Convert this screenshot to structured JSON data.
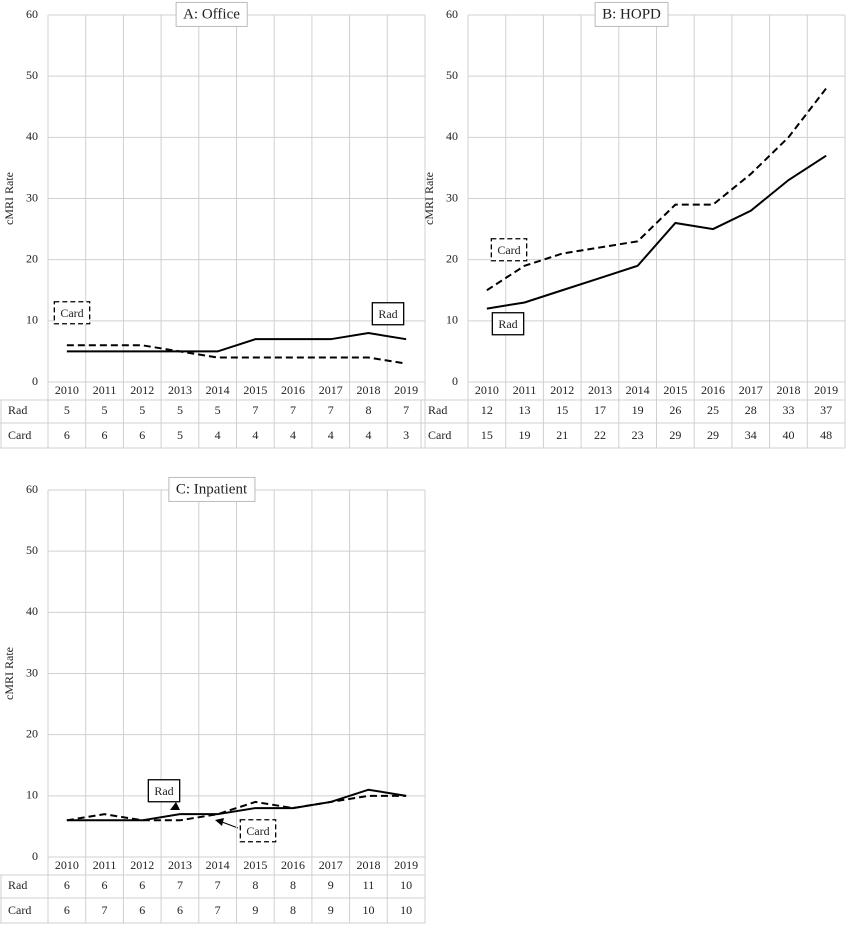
{
  "chart_data": [
    {
      "type": "line",
      "title": "A: Office",
      "y_label": "cMRI Rate",
      "categories": [
        "2010",
        "2011",
        "2012",
        "2013",
        "2014",
        "2015",
        "2016",
        "2017",
        "2018",
        "2019"
      ],
      "ylim": [
        0,
        60
      ],
      "yticks": [
        0,
        10,
        20,
        30,
        40,
        50,
        60
      ],
      "grid": true,
      "series": [
        {
          "name": "Rad",
          "color": "#000000",
          "line_style": "solid",
          "values": [
            5,
            5,
            5,
            5,
            5,
            7,
            7,
            7,
            8,
            7
          ]
        },
        {
          "name": "Card",
          "color": "#000000",
          "line_style": "dashed",
          "values": [
            6,
            6,
            6,
            5,
            4,
            4,
            4,
            4,
            4,
            3
          ]
        }
      ]
    },
    {
      "type": "line",
      "title": "B: HOPD",
      "y_label": "cMRI Rate",
      "categories": [
        "2010",
        "2011",
        "2012",
        "2013",
        "2014",
        "2015",
        "2016",
        "2017",
        "2018",
        "2019"
      ],
      "ylim": [
        0,
        60
      ],
      "yticks": [
        0,
        10,
        20,
        30,
        40,
        50,
        60
      ],
      "grid": true,
      "series": [
        {
          "name": "Rad",
          "color": "#000000",
          "line_style": "solid",
          "values": [
            12,
            13,
            15,
            17,
            19,
            26,
            25,
            28,
            33,
            37
          ]
        },
        {
          "name": "Card",
          "color": "#000000",
          "line_style": "dashed",
          "values": [
            15,
            19,
            21,
            22,
            23,
            29,
            29,
            34,
            40,
            48
          ]
        }
      ]
    },
    {
      "type": "line",
      "title": "C: Inpatient",
      "y_label": "cMRI Rate",
      "categories": [
        "2010",
        "2011",
        "2012",
        "2013",
        "2014",
        "2015",
        "2016",
        "2017",
        "2018",
        "2019"
      ],
      "ylim": [
        0,
        60
      ],
      "yticks": [
        0,
        10,
        20,
        30,
        40,
        50,
        60
      ],
      "grid": true,
      "series": [
        {
          "name": "Rad",
          "color": "#000000",
          "line_style": "solid",
          "values": [
            6,
            6,
            6,
            7,
            7,
            8,
            8,
            9,
            11,
            10
          ]
        },
        {
          "name": "Card",
          "color": "#000000",
          "line_style": "dashed",
          "values": [
            6,
            7,
            6,
            6,
            7,
            9,
            8,
            9,
            10,
            10
          ]
        }
      ]
    }
  ]
}
